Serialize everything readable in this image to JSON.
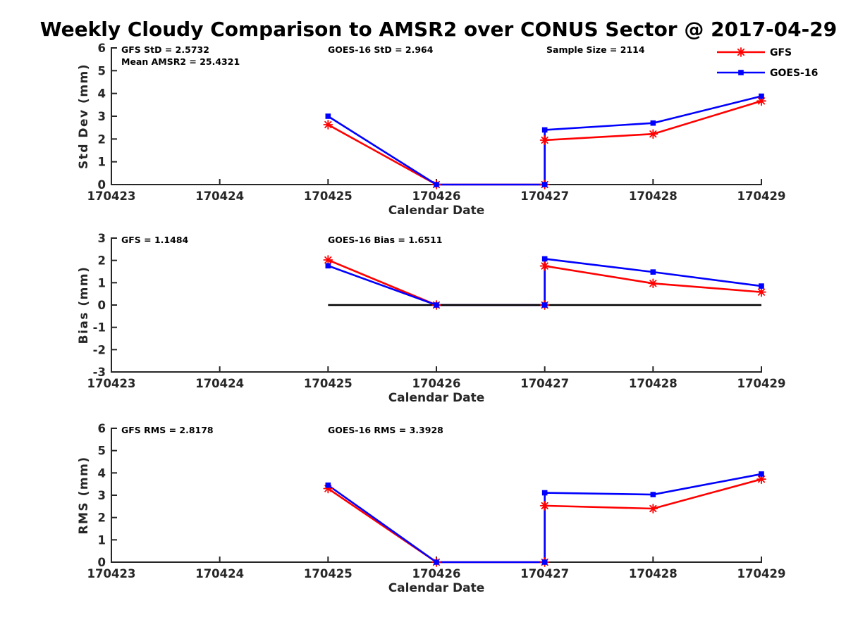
{
  "title": "Weekly Cloudy Comparison to AMSR2 over CONUS Sector @ 2017-04-29",
  "legend": {
    "items": [
      {
        "label": "GFS",
        "color": "#ff0000",
        "marker": "asterisk"
      },
      {
        "label": "GOES-16",
        "color": "#0000ff",
        "marker": "square"
      }
    ]
  },
  "colors": {
    "gfs": "#ff0000",
    "goes16": "#0000ff",
    "axis": "#262626",
    "zero_line": "#000000"
  },
  "chart_data": [
    {
      "type": "line",
      "ylabel": "Std Dev (mm)",
      "xlabel": "Calendar Date",
      "ylim": [
        0,
        6
      ],
      "yticks": [
        0,
        1,
        2,
        3,
        4,
        5,
        6
      ],
      "xlim": [
        170423,
        170429
      ],
      "xticks": [
        170423,
        170424,
        170425,
        170426,
        170427,
        170428,
        170429
      ],
      "grid": false,
      "zero_line": false,
      "annotations": [
        {
          "text": "GFS StD = 2.5732",
          "col": 0,
          "row": 0
        },
        {
          "text": "Mean AMSR2 = 25.4321",
          "col": 0,
          "row": 1
        },
        {
          "text": "GOES-16 StD = 2.964",
          "col": 1,
          "row": 0
        },
        {
          "text": "Sample Size = 2114",
          "col": 2,
          "row": 0
        }
      ],
      "series": [
        {
          "name": "GFS",
          "color": "#ff0000",
          "marker": "asterisk",
          "points": [
            [
              170425,
              2.63
            ],
            [
              170426,
              0
            ],
            [
              170427,
              0
            ],
            [
              170427,
              1.95
            ],
            [
              170428,
              2.22
            ],
            [
              170429,
              3.67
            ]
          ]
        },
        {
          "name": "GOES-16",
          "color": "#0000ff",
          "marker": "square",
          "points": [
            [
              170425,
              3.0
            ],
            [
              170426,
              0
            ],
            [
              170427,
              0
            ],
            [
              170427,
              2.4
            ],
            [
              170428,
              2.7
            ],
            [
              170429,
              3.88
            ]
          ]
        }
      ]
    },
    {
      "type": "line",
      "ylabel": "Bias (mm)",
      "xlabel": "Calendar Date",
      "ylim": [
        -3,
        3
      ],
      "yticks": [
        -3,
        -2,
        -1,
        0,
        1,
        2,
        3
      ],
      "xlim": [
        170423,
        170429
      ],
      "xticks": [
        170423,
        170424,
        170425,
        170426,
        170427,
        170428,
        170429
      ],
      "grid": false,
      "zero_line": true,
      "annotations": [
        {
          "text": "GFS = 1.1484",
          "col": 0,
          "row": 0
        },
        {
          "text": "GOES-16 Bias  = 1.6511",
          "col": 1,
          "row": 0
        }
      ],
      "series": [
        {
          "name": "GFS",
          "color": "#ff0000",
          "marker": "asterisk",
          "points": [
            [
              170425,
              2.02
            ],
            [
              170426,
              0
            ],
            [
              170427,
              0
            ],
            [
              170427,
              1.75
            ],
            [
              170428,
              0.97
            ],
            [
              170429,
              0.58
            ]
          ]
        },
        {
          "name": "GOES-16",
          "color": "#0000ff",
          "marker": "square",
          "points": [
            [
              170425,
              1.76
            ],
            [
              170426,
              0
            ],
            [
              170427,
              0
            ],
            [
              170427,
              2.07
            ],
            [
              170428,
              1.48
            ],
            [
              170429,
              0.85
            ]
          ]
        }
      ]
    },
    {
      "type": "line",
      "ylabel": "RMS (mm)",
      "xlabel": "Calendar Date",
      "ylim": [
        0,
        6
      ],
      "yticks": [
        0,
        1,
        2,
        3,
        4,
        5,
        6
      ],
      "xlim": [
        170423,
        170429
      ],
      "xticks": [
        170423,
        170424,
        170425,
        170426,
        170427,
        170428,
        170429
      ],
      "grid": false,
      "zero_line": false,
      "annotations": [
        {
          "text": "GFS RMS = 2.8178",
          "col": 0,
          "row": 0
        },
        {
          "text": "GOES-16 RMS = 3.3928",
          "col": 1,
          "row": 0
        }
      ],
      "series": [
        {
          "name": "GFS",
          "color": "#ff0000",
          "marker": "asterisk",
          "points": [
            [
              170425,
              3.3
            ],
            [
              170426,
              0
            ],
            [
              170427,
              0
            ],
            [
              170427,
              2.53
            ],
            [
              170428,
              2.4
            ],
            [
              170429,
              3.72
            ]
          ]
        },
        {
          "name": "GOES-16",
          "color": "#0000ff",
          "marker": "square",
          "points": [
            [
              170425,
              3.45
            ],
            [
              170426,
              0
            ],
            [
              170427,
              0
            ],
            [
              170427,
              3.11
            ],
            [
              170428,
              3.03
            ],
            [
              170429,
              3.95
            ]
          ]
        }
      ]
    }
  ]
}
